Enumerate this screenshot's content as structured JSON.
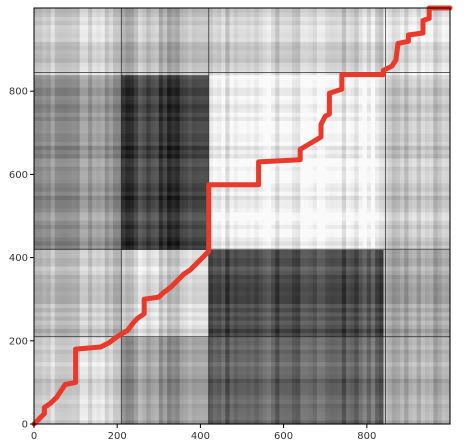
{
  "chart_data": {
    "type": "heatmap",
    "title": "",
    "xlabel": "",
    "ylabel": "",
    "xlim": [
      0,
      1000
    ],
    "ylim": [
      0,
      1000
    ],
    "y_origin": "bottom",
    "colormap": "gray",
    "grid": false,
    "xticks": [
      0,
      200,
      400,
      600,
      800
    ],
    "yticks": [
      0,
      200,
      400,
      600,
      800
    ],
    "block_boundaries_x": [
      210,
      420,
      845
    ],
    "block_boundaries_y": [
      210,
      420,
      845
    ],
    "block_shades": [
      [
        0.8,
        0.6,
        0.38,
        0.66
      ],
      [
        0.72,
        0.82,
        0.28,
        0.62
      ],
      [
        0.55,
        0.25,
        0.93,
        0.76
      ],
      [
        0.78,
        0.72,
        0.8,
        0.86
      ]
    ],
    "path": {
      "color": "#e8392a",
      "points": [
        [
          0,
          0
        ],
        [
          10,
          10
        ],
        [
          25,
          25
        ],
        [
          25,
          40
        ],
        [
          40,
          50
        ],
        [
          55,
          65
        ],
        [
          65,
          80
        ],
        [
          75,
          95
        ],
        [
          100,
          100
        ],
        [
          100,
          180
        ],
        [
          160,
          185
        ],
        [
          180,
          195
        ],
        [
          200,
          210
        ],
        [
          225,
          225
        ],
        [
          240,
          245
        ],
        [
          250,
          255
        ],
        [
          265,
          265
        ],
        [
          265,
          300
        ],
        [
          300,
          305
        ],
        [
          310,
          315
        ],
        [
          330,
          330
        ],
        [
          345,
          345
        ],
        [
          360,
          360
        ],
        [
          375,
          370
        ],
        [
          385,
          380
        ],
        [
          395,
          390
        ],
        [
          405,
          400
        ],
        [
          420,
          415
        ],
        [
          420,
          575
        ],
        [
          540,
          575
        ],
        [
          540,
          630
        ],
        [
          640,
          635
        ],
        [
          640,
          660
        ],
        [
          690,
          690
        ],
        [
          690,
          720
        ],
        [
          700,
          740
        ],
        [
          710,
          745
        ],
        [
          710,
          795
        ],
        [
          740,
          805
        ],
        [
          740,
          840
        ],
        [
          840,
          840
        ],
        [
          840,
          850
        ],
        [
          860,
          860
        ],
        [
          870,
          875
        ],
        [
          875,
          915
        ],
        [
          900,
          920
        ],
        [
          900,
          935
        ],
        [
          935,
          940
        ],
        [
          935,
          970
        ],
        [
          950,
          975
        ],
        [
          950,
          1000
        ],
        [
          1000,
          1000
        ]
      ]
    }
  }
}
